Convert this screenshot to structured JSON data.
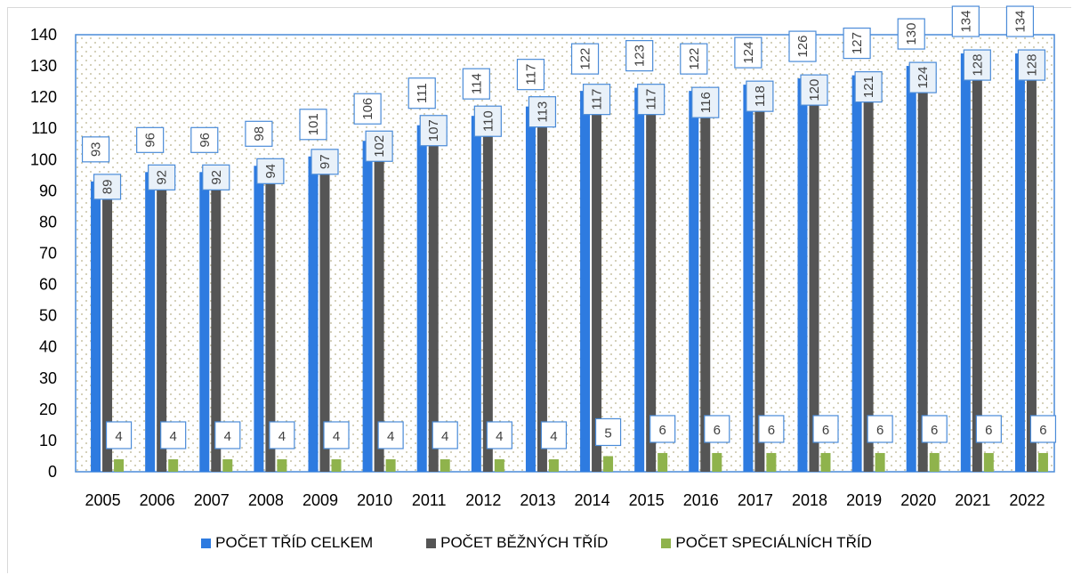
{
  "chart_data": {
    "type": "bar",
    "title": "",
    "xlabel": "",
    "ylabel": "",
    "ylim": [
      0,
      140
    ],
    "yticks": [
      0,
      10,
      20,
      30,
      40,
      50,
      60,
      70,
      80,
      90,
      100,
      110,
      120,
      130,
      140
    ],
    "grid": "dotted background",
    "legend_position": "bottom",
    "categories": [
      "2005",
      "2006",
      "2007",
      "2008",
      "2009",
      "2010",
      "2011",
      "2012",
      "2013",
      "2014",
      "2015",
      "2016",
      "2017",
      "2018",
      "2019",
      "2020",
      "2021",
      "2022"
    ],
    "series": [
      {
        "name": "POČET TŘÍD CELKEM",
        "color": "#2e7be0",
        "values": [
          93,
          96,
          96,
          98,
          101,
          106,
          111,
          114,
          117,
          122,
          123,
          122,
          124,
          126,
          127,
          130,
          134,
          134
        ]
      },
      {
        "name": "POČET BĚŽNÝCH TŘÍD",
        "color": "#555555",
        "values": [
          89,
          92,
          92,
          94,
          97,
          102,
          107,
          110,
          113,
          117,
          117,
          116,
          118,
          120,
          121,
          124,
          128,
          128
        ]
      },
      {
        "name": "POČET SPECIÁLNÍCH TŘÍD",
        "color": "#8fb34c",
        "values": [
          4,
          4,
          4,
          4,
          4,
          4,
          4,
          4,
          4,
          5,
          6,
          6,
          6,
          6,
          6,
          6,
          6,
          6
        ]
      }
    ]
  }
}
